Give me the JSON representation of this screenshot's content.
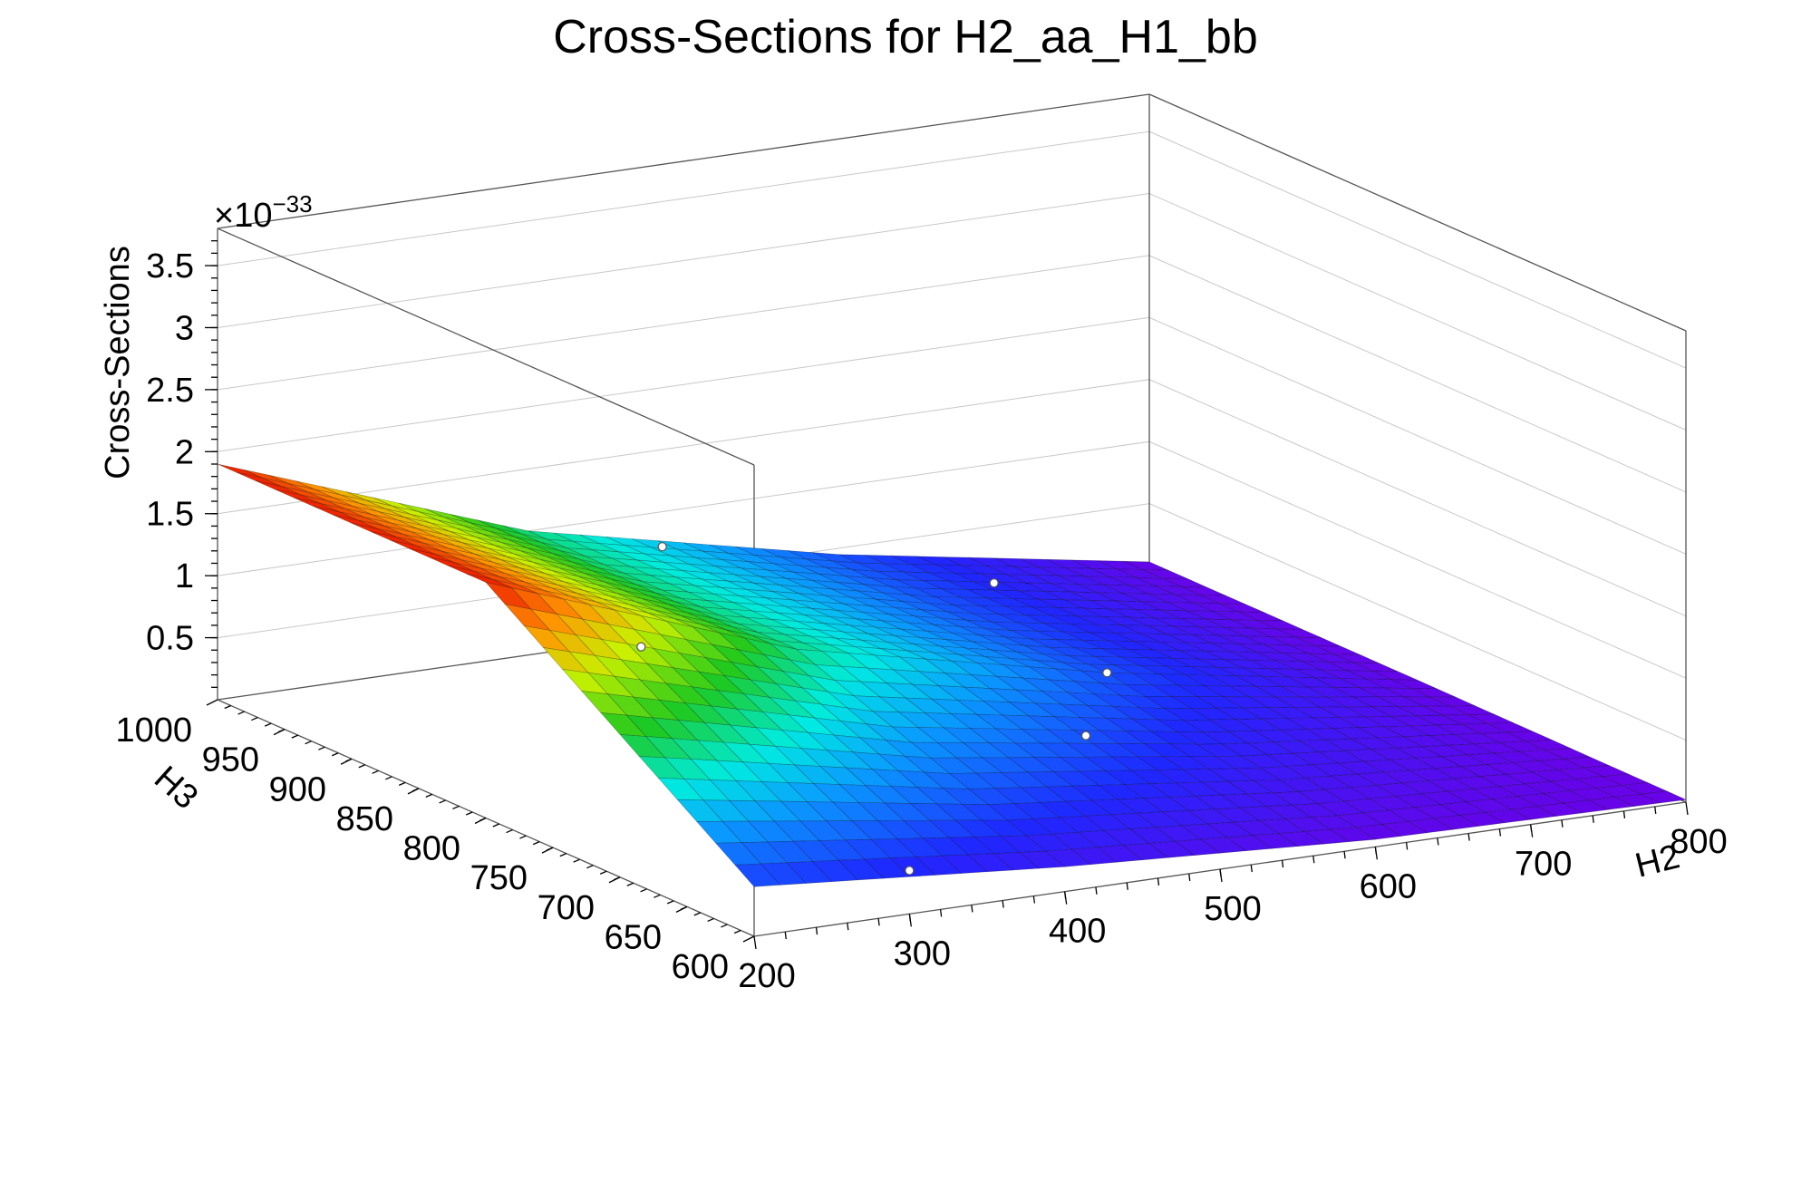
{
  "chart_data": {
    "type": "surface",
    "title": "Cross-Sections for H2_aa_H1_bb",
    "x_axis": {
      "label": "H2",
      "range": [
        200,
        800
      ],
      "ticks": [
        200,
        300,
        400,
        500,
        600,
        700,
        800
      ],
      "tick_labels": [
        "200",
        "300",
        "400",
        "500",
        "600",
        "700",
        "800"
      ]
    },
    "y_axis": {
      "label": "H3",
      "range": [
        600,
        1000
      ],
      "ticks": [
        600,
        650,
        700,
        750,
        800,
        850,
        900,
        950,
        1000
      ],
      "tick_labels": [
        "600",
        "650",
        "700",
        "750",
        "800",
        "850",
        "900",
        "950",
        "1000"
      ]
    },
    "z_axis": {
      "label": "Cross-Sections",
      "exponent_label": "×10",
      "exponent_power": "−33",
      "range": [
        0,
        3.8
      ],
      "ticks": [
        0.5,
        1,
        1.5,
        2,
        2.5,
        3,
        3.5
      ],
      "tick_labels": [
        "0.5",
        "1",
        "1.5",
        "2",
        "2.5",
        "3",
        "3.5"
      ]
    },
    "grid": true,
    "colormap": "rainbow",
    "surface": {
      "h2_nodes": [
        200,
        400,
        600,
        800
      ],
      "h3_nodes": [
        600,
        800,
        1000
      ],
      "values": [
        [
          0.4,
          1.9,
          1.9
        ],
        [
          0.2,
          1.0,
          1.0
        ],
        [
          0.06,
          0.45,
          0.45
        ],
        [
          0.02,
          0.03,
          0.03
        ]
      ]
    },
    "markers": [
      {
        "h2": 300,
        "h3": 800,
        "z": 1.2
      },
      {
        "h2": 400,
        "h3": 900,
        "z": 1.35
      },
      {
        "h2": 500,
        "h3": 700,
        "z": 0.6
      },
      {
        "h2": 600,
        "h3": 800,
        "z": 0.45
      },
      {
        "h2": 700,
        "h3": 1000,
        "z": 0.04
      },
      {
        "h2": 300,
        "h3": 600,
        "z": 0.35
      }
    ]
  }
}
